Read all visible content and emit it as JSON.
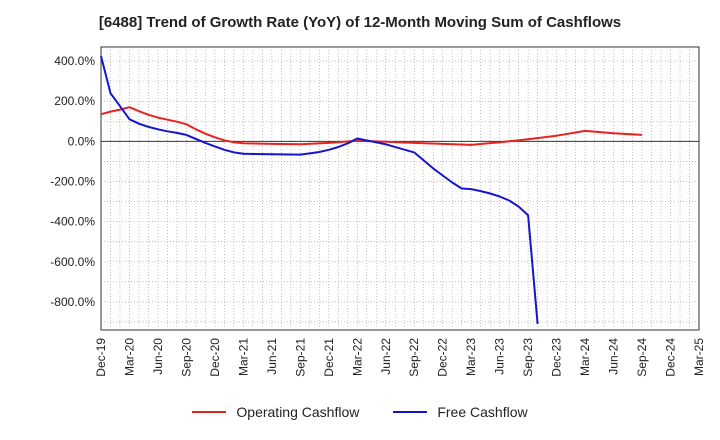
{
  "title": "[6488]  Trend of Growth Rate (YoY) of 12-Month Moving Sum of Cashflows",
  "chart_data": {
    "type": "line",
    "title": "[6488]  Trend of Growth Rate (YoY) of 12-Month Moving Sum of Cashflows",
    "xlabel": "",
    "ylabel": "",
    "x": [
      "Dec-19",
      "Mar-20",
      "Jun-20",
      "Sep-20",
      "Dec-20",
      "Mar-21",
      "Jun-21",
      "Sep-21",
      "Dec-21",
      "Mar-22",
      "Jun-22",
      "Sep-22",
      "Dec-22",
      "Mar-23",
      "Jun-23",
      "Sep-23",
      "Dec-23",
      "Mar-24",
      "Jun-24",
      "Sep-24",
      "Dec-24",
      "Mar-25"
    ],
    "x_tick_labels": [
      "Dec-19",
      "Mar-20",
      "Jun-20",
      "Sep-20",
      "Dec-20",
      "Mar-21",
      "Jun-21",
      "Sep-21",
      "Dec-21",
      "Mar-22",
      "Jun-22",
      "Sep-22",
      "Dec-22",
      "Mar-23",
      "Jun-23",
      "Sep-23",
      "Dec-23",
      "Mar-24",
      "Jun-24",
      "Sep-24",
      "Dec-24",
      "Mar-25"
    ],
    "y_tick_labels": [
      "400.0%",
      "200.0%",
      "0.0%",
      "-200.0%",
      "-400.0%",
      "-600.0%",
      "-800.0%"
    ],
    "y_ticks": [
      400,
      200,
      0,
      -200,
      -400,
      -600,
      -800
    ],
    "ylim": [
      -940,
      470
    ],
    "grid": true,
    "legend_position": "bottom",
    "series": [
      {
        "name": "Operating Cashflow",
        "color": "#e8231e",
        "points": [
          [
            "Dec-19",
            135
          ],
          [
            "Jan-20",
            148
          ],
          [
            "Feb-20",
            158
          ],
          [
            "Mar-20",
            170
          ],
          [
            "Apr-20",
            150
          ],
          [
            "May-20",
            132
          ],
          [
            "Jun-20",
            118
          ],
          [
            "Jul-20",
            108
          ],
          [
            "Aug-20",
            98
          ],
          [
            "Sep-20",
            85
          ],
          [
            "Oct-20",
            60
          ],
          [
            "Nov-20",
            38
          ],
          [
            "Dec-20",
            20
          ],
          [
            "Jan-21",
            5
          ],
          [
            "Feb-21",
            -5
          ],
          [
            "Mar-21",
            -10
          ],
          [
            "Jun-21",
            -13
          ],
          [
            "Sep-21",
            -15
          ],
          [
            "Dec-21",
            -8
          ],
          [
            "Mar-22",
            3
          ],
          [
            "Jun-22",
            -2
          ],
          [
            "Sep-22",
            -8
          ],
          [
            "Dec-22",
            -13
          ],
          [
            "Mar-23",
            -18
          ],
          [
            "Jun-23",
            -5
          ],
          [
            "Sep-23",
            10
          ],
          [
            "Dec-23",
            28
          ],
          [
            "Mar-24",
            52
          ],
          [
            "Jun-24",
            40
          ],
          [
            "Sep-24",
            32
          ]
        ]
      },
      {
        "name": "Free Cashflow",
        "color": "#1515d0",
        "points": [
          [
            "Dec-19",
            425
          ],
          [
            "Jan-20",
            240
          ],
          [
            "Feb-20",
            175
          ],
          [
            "Mar-20",
            110
          ],
          [
            "Apr-20",
            88
          ],
          [
            "May-20",
            72
          ],
          [
            "Jun-20",
            60
          ],
          [
            "Jul-20",
            50
          ],
          [
            "Aug-20",
            42
          ],
          [
            "Sep-20",
            32
          ],
          [
            "Oct-20",
            12
          ],
          [
            "Nov-20",
            -8
          ],
          [
            "Dec-20",
            -25
          ],
          [
            "Jan-21",
            -42
          ],
          [
            "Feb-21",
            -55
          ],
          [
            "Mar-21",
            -62
          ],
          [
            "Jun-21",
            -64
          ],
          [
            "Sep-21",
            -66
          ],
          [
            "Oct-21",
            -60
          ],
          [
            "Nov-21",
            -53
          ],
          [
            "Dec-21",
            -42
          ],
          [
            "Jan-22",
            -28
          ],
          [
            "Feb-22",
            -10
          ],
          [
            "Mar-22",
            14
          ],
          [
            "Jun-22",
            -15
          ],
          [
            "Sep-22",
            -55
          ],
          [
            "Oct-22",
            -95
          ],
          [
            "Nov-22",
            -135
          ],
          [
            "Dec-22",
            -170
          ],
          [
            "Jan-23",
            -205
          ],
          [
            "Feb-23",
            -235
          ],
          [
            "Mar-23",
            -238
          ],
          [
            "Apr-23",
            -248
          ],
          [
            "May-23",
            -260
          ],
          [
            "Jun-23",
            -275
          ],
          [
            "Jul-23",
            -295
          ],
          [
            "Aug-23",
            -325
          ],
          [
            "Sep-23",
            -368
          ],
          [
            "Oct-23",
            -910
          ]
        ]
      }
    ]
  }
}
